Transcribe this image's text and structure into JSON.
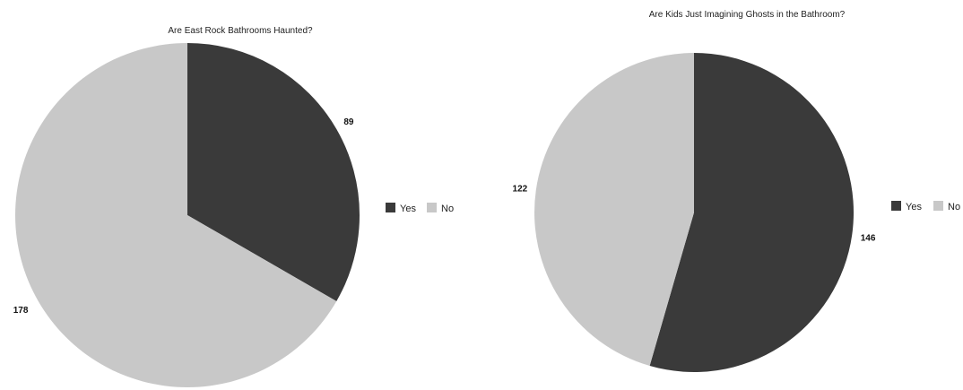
{
  "chart_data": [
    {
      "type": "pie",
      "title": "Are East Rock Bathrooms Haunted?",
      "categories": [
        "Yes",
        "No"
      ],
      "values": [
        89,
        178
      ],
      "colors": [
        "#3a3a3a",
        "#c8c8c8"
      ],
      "legend": [
        "Yes",
        "No"
      ],
      "legend_position": "right"
    },
    {
      "type": "pie",
      "title": "Are Kids Just Imagining Ghosts in the Bathroom?",
      "categories": [
        "Yes",
        "No"
      ],
      "values": [
        146,
        122
      ],
      "colors": [
        "#3a3a3a",
        "#c8c8c8"
      ],
      "legend": [
        "Yes",
        "No"
      ],
      "legend_position": "right"
    }
  ]
}
